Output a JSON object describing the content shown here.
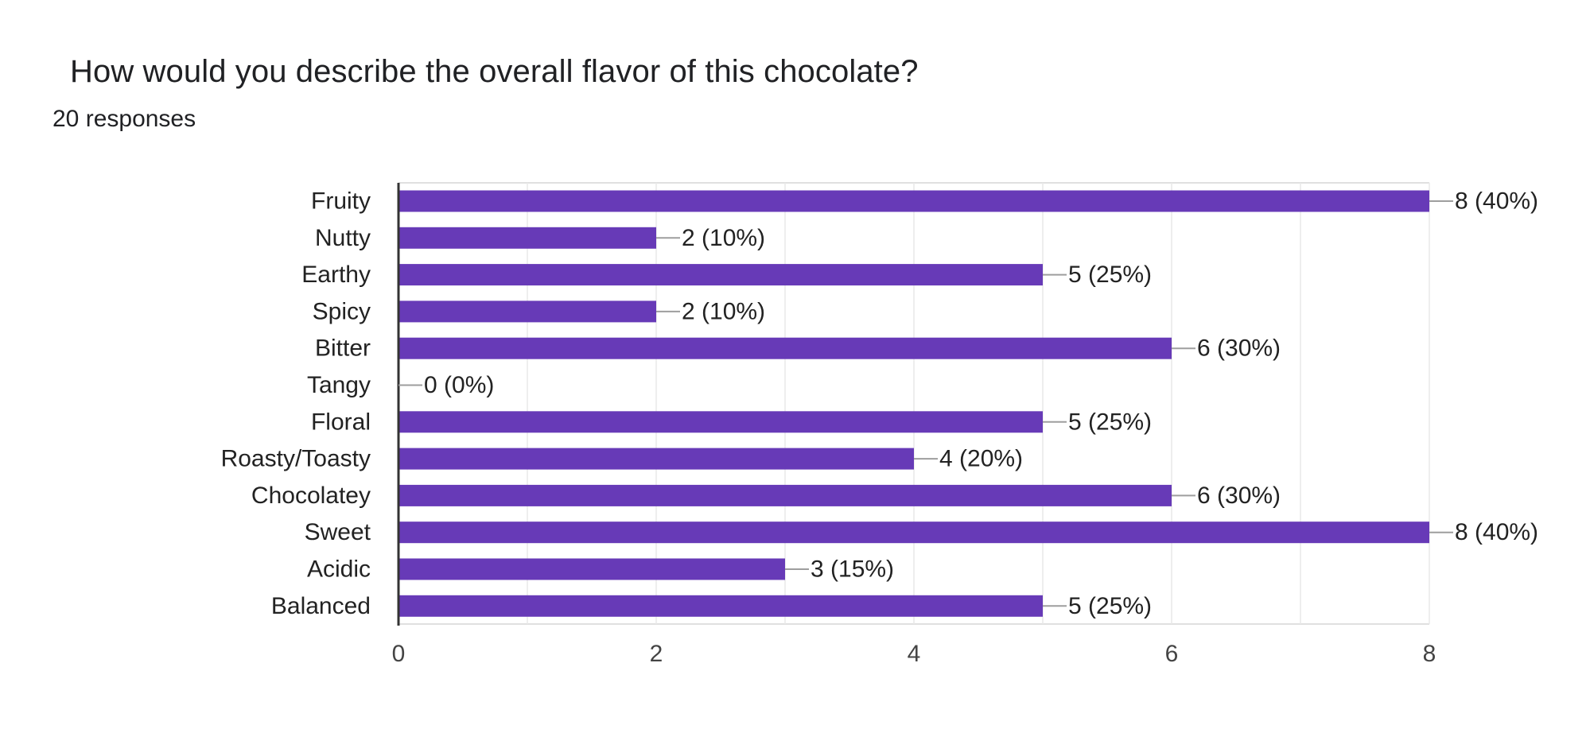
{
  "question": {
    "title": "How would you describe the overall flavor of this chocolate?",
    "responses": "20 responses"
  },
  "chart_data": {
    "type": "bar",
    "orientation": "horizontal",
    "title": "How would you describe the overall flavor of this chocolate?",
    "xlabel": "",
    "ylabel": "",
    "xlim": [
      0,
      8
    ],
    "x_ticks": [
      0,
      2,
      4,
      6,
      8
    ],
    "grid": true,
    "bar_color": "#673ab7",
    "categories": [
      "Fruity",
      "Nutty",
      "Earthy",
      "Spicy",
      "Bitter",
      "Tangy",
      "Floral",
      "Roasty/Toasty",
      "Chocolatey",
      "Sweet",
      "Acidic",
      "Balanced"
    ],
    "values": [
      8,
      2,
      5,
      2,
      6,
      0,
      5,
      4,
      6,
      8,
      3,
      5
    ],
    "data_labels": [
      "8 (40%)",
      "2 (10%)",
      "5 (25%)",
      "2 (10%)",
      "6 (30%)",
      "0 (0%)",
      "5 (25%)",
      "4 (20%)",
      "6 (30%)",
      "8 (40%)",
      "3 (15%)",
      "5 (25%)"
    ]
  }
}
